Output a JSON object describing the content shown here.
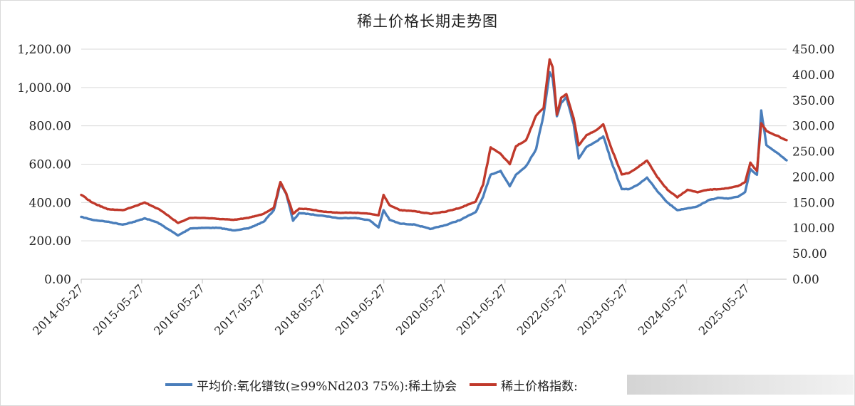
{
  "chart_data": {
    "type": "line",
    "title": "稀土价格长期走势图",
    "x_ticks": [
      "2014-05-27",
      "2015-05-27",
      "2016-05-27",
      "2017-05-27",
      "2018-05-27",
      "2019-05-27",
      "2020-05-27",
      "2021-05-27",
      "2022-05-27",
      "2023-05-27",
      "2024-05-27",
      "2025-05-27"
    ],
    "x_range": [
      "2014-05-27",
      "2026-01-20"
    ],
    "y_left": {
      "ticks": [
        "0.00",
        "200.00",
        "400.00",
        "600.00",
        "800.00",
        "1,000.00",
        "1,200.00"
      ],
      "range": [
        0,
        1200
      ]
    },
    "y_right": {
      "ticks": [
        "0.00",
        "50.00",
        "100.00",
        "150.00",
        "200.00",
        "250.00",
        "300.00",
        "350.00",
        "400.00",
        "450.00"
      ],
      "range": [
        0,
        450
      ]
    },
    "grid": "horizontal",
    "legend_position": "bottom",
    "series": [
      {
        "name": "平均价:氧化镨钕(≥99%Nd203 75%):稀土协会",
        "axis": "left",
        "color": "#4a7ebb",
        "points": [
          [
            "2014-05-27",
            325
          ],
          [
            "2014-08-01",
            310
          ],
          [
            "2014-11-01",
            300
          ],
          [
            "2015-02-01",
            285
          ],
          [
            "2015-04-15",
            300
          ],
          [
            "2015-06-15",
            318
          ],
          [
            "2015-09-01",
            295
          ],
          [
            "2015-11-01",
            262
          ],
          [
            "2016-01-01",
            228
          ],
          [
            "2016-03-15",
            265
          ],
          [
            "2016-06-01",
            268
          ],
          [
            "2016-09-01",
            268
          ],
          [
            "2016-12-01",
            255
          ],
          [
            "2017-03-01",
            265
          ],
          [
            "2017-06-01",
            300
          ],
          [
            "2017-08-01",
            360
          ],
          [
            "2017-09-10",
            500
          ],
          [
            "2017-10-15",
            445
          ],
          [
            "2017-11-25",
            305
          ],
          [
            "2018-01-01",
            345
          ],
          [
            "2018-03-01",
            340
          ],
          [
            "2018-06-01",
            330
          ],
          [
            "2018-09-01",
            318
          ],
          [
            "2018-12-01",
            320
          ],
          [
            "2019-03-01",
            308
          ],
          [
            "2019-04-25",
            270
          ],
          [
            "2019-05-25",
            360
          ],
          [
            "2019-06-30",
            310
          ],
          [
            "2019-09-01",
            290
          ],
          [
            "2019-12-01",
            285
          ],
          [
            "2020-03-01",
            262
          ],
          [
            "2020-06-01",
            282
          ],
          [
            "2020-09-01",
            310
          ],
          [
            "2020-12-01",
            350
          ],
          [
            "2021-01-15",
            430
          ],
          [
            "2021-03-01",
            545
          ],
          [
            "2021-05-01",
            565
          ],
          [
            "2021-06-25",
            485
          ],
          [
            "2021-08-01",
            545
          ],
          [
            "2021-10-01",
            590
          ],
          [
            "2021-12-01",
            680
          ],
          [
            "2022-01-15",
            860
          ],
          [
            "2022-02-20",
            1080
          ],
          [
            "2022-03-10",
            1050
          ],
          [
            "2022-04-05",
            850
          ],
          [
            "2022-05-01",
            920
          ],
          [
            "2022-06-01",
            950
          ],
          [
            "2022-07-15",
            810
          ],
          [
            "2022-08-15",
            630
          ],
          [
            "2022-10-01",
            690
          ],
          [
            "2022-12-01",
            720
          ],
          [
            "2023-01-10",
            745
          ],
          [
            "2023-03-01",
            610
          ],
          [
            "2023-05-01",
            470
          ],
          [
            "2023-06-15",
            470
          ],
          [
            "2023-08-01",
            490
          ],
          [
            "2023-10-01",
            530
          ],
          [
            "2023-12-01",
            460
          ],
          [
            "2024-02-01",
            400
          ],
          [
            "2024-04-01",
            360
          ],
          [
            "2024-06-01",
            370
          ],
          [
            "2024-08-01",
            380
          ],
          [
            "2024-10-01",
            410
          ],
          [
            "2024-12-01",
            425
          ],
          [
            "2025-02-01",
            420
          ],
          [
            "2025-04-01",
            430
          ],
          [
            "2025-05-15",
            455
          ],
          [
            "2025-06-15",
            575
          ],
          [
            "2025-07-25",
            545
          ],
          [
            "2025-08-20",
            880
          ],
          [
            "2025-09-20",
            700
          ],
          [
            "2026-01-20",
            620
          ]
        ]
      },
      {
        "name": "稀土价格指数:",
        "axis": "right",
        "color": "#c0392b",
        "points": [
          [
            "2014-05-27",
            165
          ],
          [
            "2014-08-01",
            150
          ],
          [
            "2014-11-01",
            137
          ],
          [
            "2015-02-01",
            135
          ],
          [
            "2015-04-15",
            143
          ],
          [
            "2015-06-15",
            150
          ],
          [
            "2015-09-01",
            138
          ],
          [
            "2015-11-01",
            125
          ],
          [
            "2016-01-01",
            110
          ],
          [
            "2016-03-15",
            120
          ],
          [
            "2016-06-01",
            120
          ],
          [
            "2016-09-01",
            118
          ],
          [
            "2016-12-01",
            116
          ],
          [
            "2017-03-01",
            120
          ],
          [
            "2017-06-01",
            128
          ],
          [
            "2017-08-01",
            140
          ],
          [
            "2017-09-10",
            190
          ],
          [
            "2017-10-15",
            168
          ],
          [
            "2017-11-25",
            128
          ],
          [
            "2018-01-01",
            138
          ],
          [
            "2018-03-01",
            137
          ],
          [
            "2018-06-01",
            132
          ],
          [
            "2018-09-01",
            130
          ],
          [
            "2018-12-01",
            130
          ],
          [
            "2019-03-01",
            128
          ],
          [
            "2019-04-25",
            125
          ],
          [
            "2019-05-25",
            165
          ],
          [
            "2019-06-30",
            145
          ],
          [
            "2019-09-01",
            135
          ],
          [
            "2019-12-01",
            133
          ],
          [
            "2020-03-01",
            128
          ],
          [
            "2020-06-01",
            132
          ],
          [
            "2020-09-01",
            140
          ],
          [
            "2020-12-01",
            152
          ],
          [
            "2021-01-15",
            185
          ],
          [
            "2021-03-01",
            258
          ],
          [
            "2021-05-01",
            245
          ],
          [
            "2021-06-25",
            225
          ],
          [
            "2021-08-01",
            260
          ],
          [
            "2021-10-01",
            272
          ],
          [
            "2021-12-01",
            320
          ],
          [
            "2022-01-15",
            335
          ],
          [
            "2022-02-20",
            430
          ],
          [
            "2022-03-10",
            415
          ],
          [
            "2022-04-05",
            322
          ],
          [
            "2022-05-01",
            355
          ],
          [
            "2022-06-01",
            362
          ],
          [
            "2022-07-15",
            315
          ],
          [
            "2022-08-15",
            262
          ],
          [
            "2022-10-01",
            282
          ],
          [
            "2022-12-01",
            292
          ],
          [
            "2023-01-10",
            303
          ],
          [
            "2023-03-01",
            255
          ],
          [
            "2023-05-01",
            205
          ],
          [
            "2023-06-15",
            208
          ],
          [
            "2023-08-01",
            218
          ],
          [
            "2023-10-01",
            232
          ],
          [
            "2023-12-01",
            200
          ],
          [
            "2024-02-01",
            175
          ],
          [
            "2024-04-01",
            160
          ],
          [
            "2024-06-01",
            175
          ],
          [
            "2024-08-01",
            170
          ],
          [
            "2024-10-01",
            175
          ],
          [
            "2024-12-01",
            176
          ],
          [
            "2025-02-01",
            178
          ],
          [
            "2025-04-01",
            182
          ],
          [
            "2025-05-15",
            190
          ],
          [
            "2025-06-15",
            228
          ],
          [
            "2025-07-25",
            212
          ],
          [
            "2025-08-20",
            305
          ],
          [
            "2025-09-20",
            290
          ],
          [
            "2026-01-20",
            272
          ]
        ]
      }
    ]
  }
}
